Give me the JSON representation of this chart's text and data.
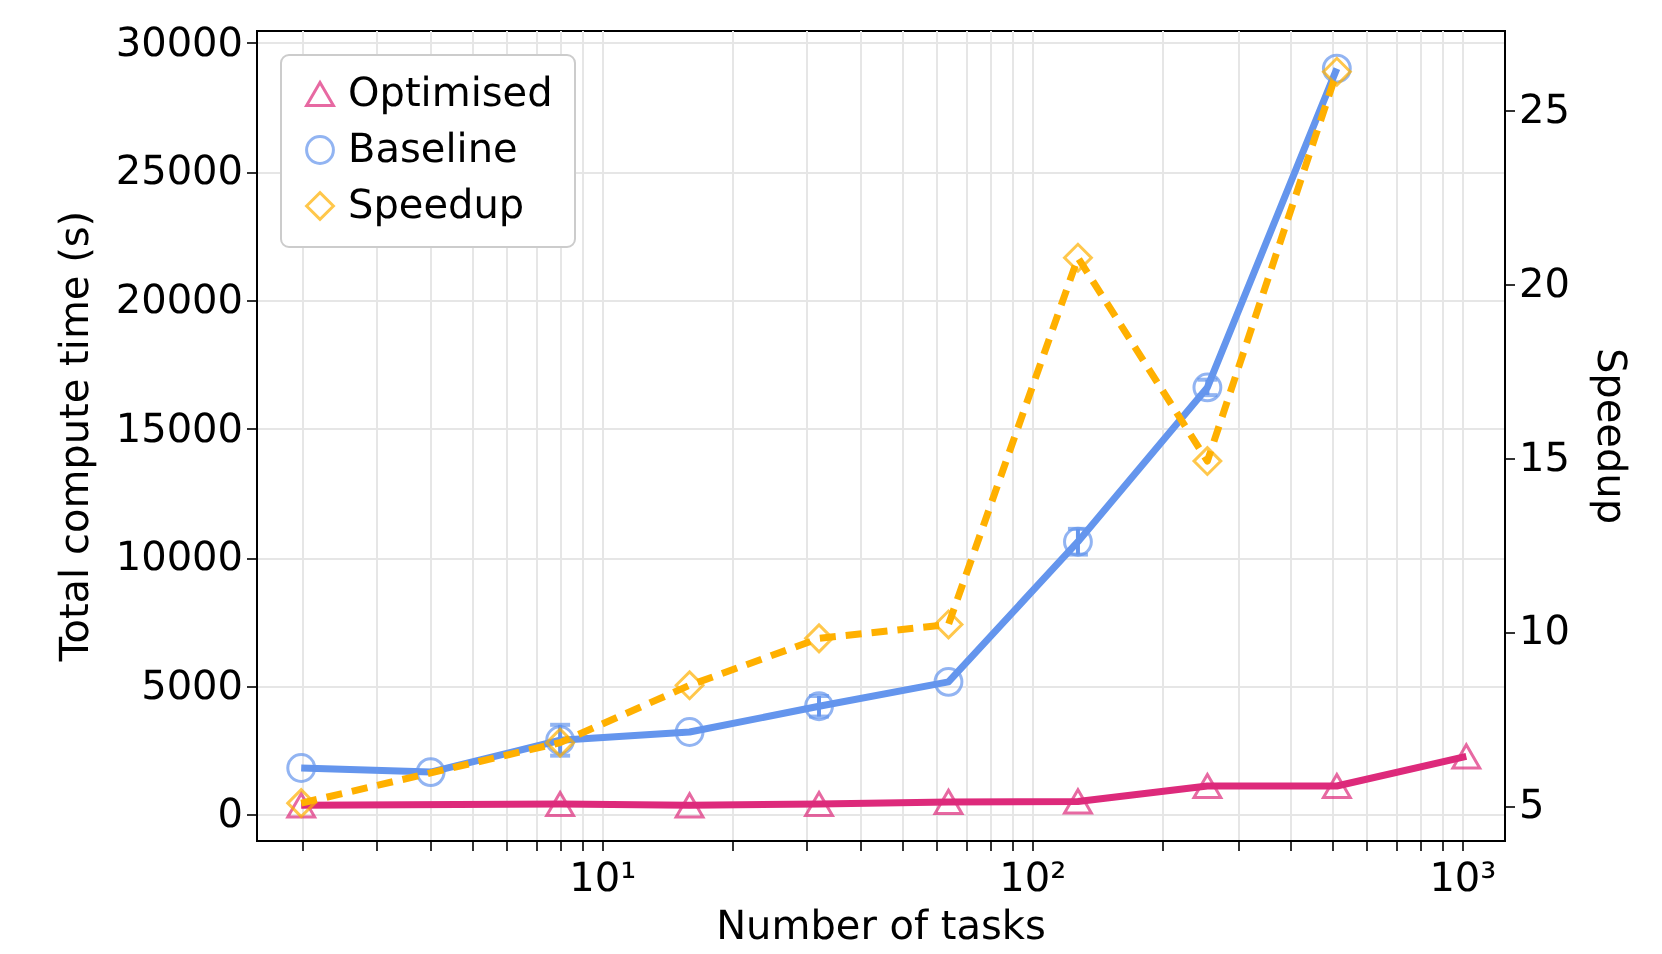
{
  "chart_data": {
    "type": "line",
    "xlabel": "Number of tasks",
    "ylabel": "Total compute time (s)",
    "y2label": "Speedup",
    "log": "x",
    "grid": true,
    "legend": "top left",
    "xlim": [
      1.57,
      1253
    ],
    "xticks": [
      {
        "value": 2,
        "label": null
      },
      {
        "value": 3,
        "label": null
      },
      {
        "value": 4,
        "label": null
      },
      {
        "value": 5,
        "label": null
      },
      {
        "value": 6,
        "label": null
      },
      {
        "value": 7,
        "label": null
      },
      {
        "value": 8,
        "label": null
      },
      {
        "value": 9,
        "label": null
      },
      {
        "value": 10,
        "label": "10¹"
      },
      {
        "value": 20,
        "label": null
      },
      {
        "value": 30,
        "label": null
      },
      {
        "value": 40,
        "label": null
      },
      {
        "value": 50,
        "label": null
      },
      {
        "value": 60,
        "label": null
      },
      {
        "value": 70,
        "label": null
      },
      {
        "value": 80,
        "label": null
      },
      {
        "value": 90,
        "label": null
      },
      {
        "value": 100,
        "label": "10²"
      },
      {
        "value": 200,
        "label": null
      },
      {
        "value": 300,
        "label": null
      },
      {
        "value": 400,
        "label": null
      },
      {
        "value": 500,
        "label": null
      },
      {
        "value": 600,
        "label": null
      },
      {
        "value": 700,
        "label": null
      },
      {
        "value": 800,
        "label": null
      },
      {
        "value": 900,
        "label": null
      },
      {
        "value": 1000,
        "label": "10³"
      }
    ],
    "ylim": [
      -1000,
      30500
    ],
    "yticks": [
      0,
      5000,
      10000,
      15000,
      20000,
      25000,
      30000
    ],
    "y2lim": [
      4.0,
      27.3
    ],
    "y2ticks": [
      5,
      10,
      15,
      20,
      25
    ],
    "series": [
      {
        "name": "Optimised",
        "color": "#dd2a7b",
        "marker": "triangle",
        "line_style": "solid",
        "x": [
          2,
          8,
          16,
          32,
          64,
          128,
          256,
          512,
          1024
        ],
        "values": [
          350,
          400,
          350,
          400,
          480,
          500,
          1100,
          1100,
          2250
        ]
      },
      {
        "name": "Baseline",
        "color": "#6495ed",
        "marker": "circle",
        "line_style": "solid",
        "x": [
          2,
          4,
          8,
          16,
          32,
          64,
          128,
          256,
          512
        ],
        "values": [
          1800,
          1640,
          2880,
          3200,
          4200,
          5150,
          10600,
          16600,
          29000
        ],
        "errors": [
          null,
          null,
          600,
          null,
          400,
          null,
          500,
          300,
          null
        ]
      },
      {
        "name": "Speedup",
        "color": "#ffb000",
        "marker": "diamond",
        "line_style": "dashed",
        "axis": "y2",
        "x": [
          2,
          8,
          16,
          32,
          64,
          128,
          256,
          512
        ],
        "values": [
          5.06,
          6.8,
          8.45,
          9.8,
          10.2,
          20.75,
          14.9,
          26.1
        ]
      }
    ]
  }
}
